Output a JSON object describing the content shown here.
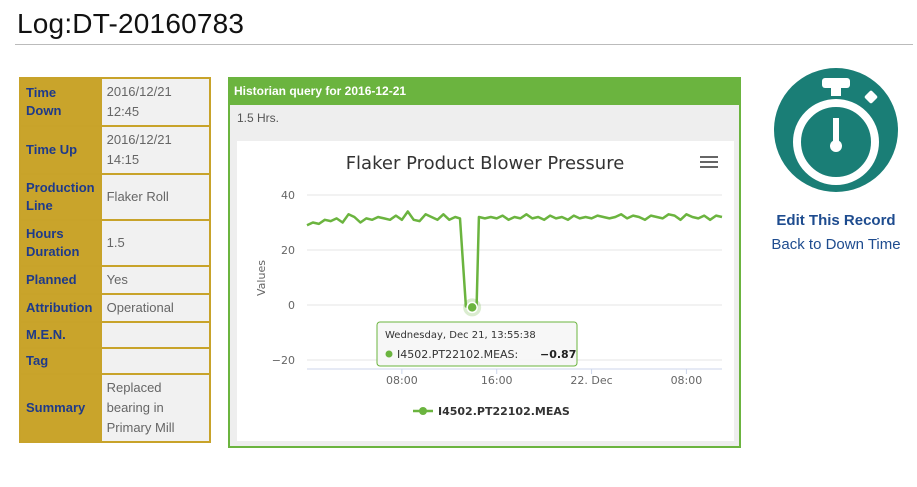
{
  "page": {
    "title": "Log:DT-20160783"
  },
  "info_rows": [
    {
      "label": "Time Down",
      "value": "2016/12/21 12:45"
    },
    {
      "label": "Time Up",
      "value": "2016/12/21 14:15"
    },
    {
      "label": "Production Line",
      "value": "Flaker Roll"
    },
    {
      "label": "Hours Duration",
      "value": "1.5"
    },
    {
      "label": "Planned",
      "value": "Yes"
    },
    {
      "label": "Attribution",
      "value": "Operational"
    },
    {
      "label": "M.E.N.",
      "value": ""
    },
    {
      "label": "Tag",
      "value": ""
    },
    {
      "label": "Summary",
      "value": "Replaced bearing in Primary Mill"
    }
  ],
  "panel": {
    "header": "Historian query for 2016-12-21",
    "duration": "1.5 Hrs."
  },
  "links": {
    "edit": "Edit This Record",
    "back": "Back to Down Time"
  },
  "colors": {
    "gold": "#c9a42b",
    "green": "#6bb43f",
    "teal": "#1a7e76",
    "link": "#1e4c8f",
    "series": "#6bb43f"
  },
  "icons": {
    "menu": "hamburger-menu-icon",
    "record": "stopwatch-icon"
  },
  "chart_data": {
    "type": "line",
    "title": "Flaker Product Blower Pressure",
    "ylabel": "Values",
    "xlabel": "",
    "ylim": [
      -20,
      40
    ],
    "yticks": [
      40,
      20,
      0,
      -20
    ],
    "x_ticks": [
      {
        "label": "08:00",
        "hours": 8
      },
      {
        "label": "16:00",
        "hours": 16
      },
      {
        "label": "22. Dec",
        "hours": 24
      },
      {
        "label": "08:00",
        "hours": 32
      }
    ],
    "series": [
      {
        "name": "I4502.PT22102.MEAS",
        "x_hours": [
          0,
          0.5,
          1,
          1.5,
          2,
          2.5,
          3,
          3.5,
          4,
          4.5,
          5,
          5.5,
          6,
          6.5,
          7,
          7.5,
          8,
          8.5,
          9,
          9.5,
          10,
          10.5,
          11,
          11.5,
          12,
          12.5,
          12.9,
          13.4,
          13.93,
          14.3,
          14.5,
          15,
          15.5,
          16,
          16.5,
          17,
          17.5,
          18,
          18.5,
          19,
          19.5,
          20,
          20.5,
          21,
          21.5,
          22,
          22.5,
          23,
          23.5,
          24,
          24.5,
          25,
          25.5,
          26,
          26.5,
          27,
          27.5,
          28,
          28.5,
          29,
          29.5,
          30,
          30.5,
          31,
          31.5,
          32,
          32.5,
          33,
          33.5,
          34,
          34.5,
          35
        ],
        "values": [
          29,
          30,
          29.5,
          31,
          30.5,
          31.5,
          30,
          33,
          32,
          30,
          31.5,
          31,
          32,
          31.5,
          31,
          32.5,
          31,
          34,
          31,
          30.5,
          33,
          32,
          31,
          33,
          31,
          32,
          31.5,
          -0.5,
          -0.87,
          -0.5,
          32,
          31.5,
          32,
          31.5,
          32.5,
          31,
          32,
          31.5,
          33,
          31.5,
          32,
          31,
          32.5,
          31.5,
          32,
          31,
          32.5,
          31.5,
          32,
          31.5,
          32.5,
          32,
          31.5,
          32,
          33,
          31.5,
          32.5,
          32,
          31,
          32.5,
          32,
          31.5,
          33,
          32.5,
          31,
          33,
          32,
          31.5,
          32.5,
          31,
          32.5,
          32
        ]
      }
    ],
    "tooltip": {
      "date": "Wednesday, Dec 21, 13:55:38",
      "series": "I4502.PT22102.MEAS:",
      "value": "-0.87",
      "point_hours": 13.93
    }
  }
}
